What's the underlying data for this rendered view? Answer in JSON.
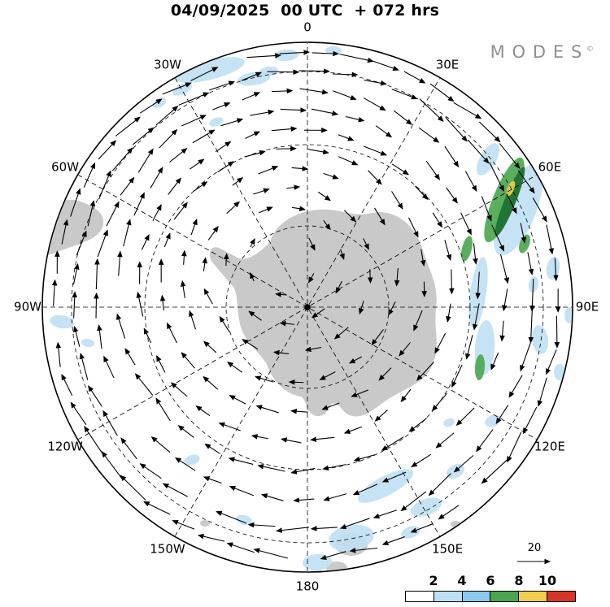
{
  "title": "04/09/2025  00 UTC  + 072 hrs",
  "logo": {
    "text": "MODES",
    "sup": "©"
  },
  "legend": {
    "ref_label": "20",
    "colorbar_ticks": [
      "2",
      "4",
      "6",
      "8",
      "10"
    ],
    "colorbar_colors": [
      "#ffffff",
      "#bfe0f4",
      "#8ec8ec",
      "#4aa54e",
      "#f2cf4a",
      "#d7352a"
    ]
  },
  "chart_data": {
    "type": "vector_field_map",
    "projection": "south-polar-stereographic",
    "title": "04/09/2025 00 UTC + 072 hrs",
    "description": "Southern Hemisphere forecast wind vectors with shaded magnitude, circumpolar clockwise flow around Antarctica",
    "reference_vector": 20,
    "shading_scale_ticks": [
      2,
      4,
      6,
      8,
      10
    ],
    "meridian_labels": [
      {
        "t": "0",
        "a": 0
      },
      {
        "t": "30E",
        "a": 30
      },
      {
        "t": "60E",
        "a": 60
      },
      {
        "t": "90E",
        "a": 90
      },
      {
        "t": "120E",
        "a": 120
      },
      {
        "t": "150E",
        "a": 150
      },
      {
        "t": "180",
        "a": 180
      },
      {
        "t": "150W",
        "a": 210
      },
      {
        "t": "120W",
        "a": 240
      },
      {
        "t": "90W",
        "a": 270
      },
      {
        "t": "60W",
        "a": 300
      },
      {
        "t": "30W",
        "a": 330
      }
    ],
    "geometry": {
      "center": [
        378,
        378
      ],
      "radius": 326,
      "vortex": [
        342,
        312
      ],
      "grat_circles": [
        100,
        200,
        290
      ],
      "rings": [
        42,
        72,
        102,
        132,
        162,
        192,
        222,
        252,
        282,
        310
      ],
      "arrow_spacing": 38,
      "seed": 7,
      "land_color": "#c9c9c9",
      "land_paths": [
        "M 332 298 C 338 276 362 260 392 258 C 418 256 432 268 458 262 C 488 256 512 280 520 308 C 527 332 540 350 536 380 C 533 405 542 424 532 448 C 523 472 497 478 476 492 C 460 503 446 517 430 511 C 419 507 418 494 407 497 C 402 511 392 516 383 509 C 375 503 377 492 370 488 C 352 486 334 468 328 448 C 318 432 302 422 296 402 C 290 383 294 362 286 352 L 262 324 C 254 314 258 301 269 305 L 292 317 C 303 323 318 312 332 298 Z",
        "M 30 244 L 92 246 C 114 252 132 262 126 280 C 118 298 88 302 66 312 L 30 320 Z"
      ],
      "land_ellipses": [
        [
          432,
          670,
          20,
          14
        ],
        [
          414,
          699,
          13,
          8
        ],
        [
          560,
          645,
          6,
          4
        ],
        [
          252,
          644,
          6,
          4
        ]
      ],
      "palette": {
        "b": "#bfe0f4",
        "db": "#8ec8ec",
        "g": "#4aa54e",
        "dg": "#1c6e2e",
        "y": "#f2cf4a"
      },
      "shading": [
        [
          258,
          86,
          44,
          12,
          -14,
          "b"
        ],
        [
          312,
          97,
          20,
          8,
          -8,
          "b"
        ],
        [
          352,
          68,
          15,
          7,
          -5,
          "b"
        ],
        [
          330,
          88,
          12,
          6,
          -10,
          "b"
        ],
        [
          410,
          62,
          10,
          5,
          0,
          "b"
        ],
        [
          224,
          110,
          13,
          6,
          -24,
          "b"
        ],
        [
          196,
          127,
          9,
          5,
          -28,
          "b"
        ],
        [
          266,
          150,
          9,
          5,
          -20,
          "b"
        ],
        [
          180,
          90,
          10,
          5,
          -30,
          "b"
        ],
        [
          637,
          258,
          22,
          60,
          22,
          "b"
        ],
        [
          620,
          246,
          14,
          56,
          22,
          "g"
        ],
        [
          627,
          248,
          7,
          46,
          22,
          "dg"
        ],
        [
          628,
          232,
          4,
          10,
          22,
          "y"
        ],
        [
          600,
          196,
          10,
          22,
          30,
          "b"
        ],
        [
          574,
          306,
          6,
          16,
          14,
          "g"
        ],
        [
          645,
          300,
          6,
          12,
          20,
          "g"
        ],
        [
          656,
          350,
          6,
          10,
          10,
          "b"
        ],
        [
          588,
          360,
          10,
          44,
          8,
          "b"
        ],
        [
          596,
          428,
          12,
          34,
          4,
          "b"
        ],
        [
          590,
          452,
          6,
          16,
          4,
          "g"
        ],
        [
          664,
          418,
          10,
          18,
          -8,
          "b"
        ],
        [
          688,
          458,
          7,
          10,
          0,
          "b"
        ],
        [
          680,
          330,
          8,
          14,
          10,
          "b"
        ],
        [
          700,
          388,
          6,
          10,
          0,
          "b"
        ],
        [
          474,
          598,
          38,
          12,
          -28,
          "b"
        ],
        [
          524,
          624,
          20,
          10,
          -20,
          "b"
        ],
        [
          505,
          655,
          12,
          7,
          -18,
          "b"
        ],
        [
          432,
          662,
          28,
          16,
          -10,
          "b"
        ],
        [
          390,
          692,
          18,
          10,
          -4,
          "b"
        ],
        [
          560,
          580,
          12,
          8,
          -30,
          "b"
        ],
        [
          606,
          518,
          10,
          7,
          -24,
          "b"
        ],
        [
          552,
          520,
          7,
          5,
          -20,
          "b"
        ],
        [
          76,
          396,
          15,
          8,
          10,
          "b"
        ],
        [
          108,
          422,
          8,
          5,
          10,
          "b"
        ],
        [
          236,
          566,
          10,
          6,
          -18,
          "b"
        ],
        [
          300,
          640,
          10,
          6,
          14,
          "b"
        ]
      ]
    }
  }
}
